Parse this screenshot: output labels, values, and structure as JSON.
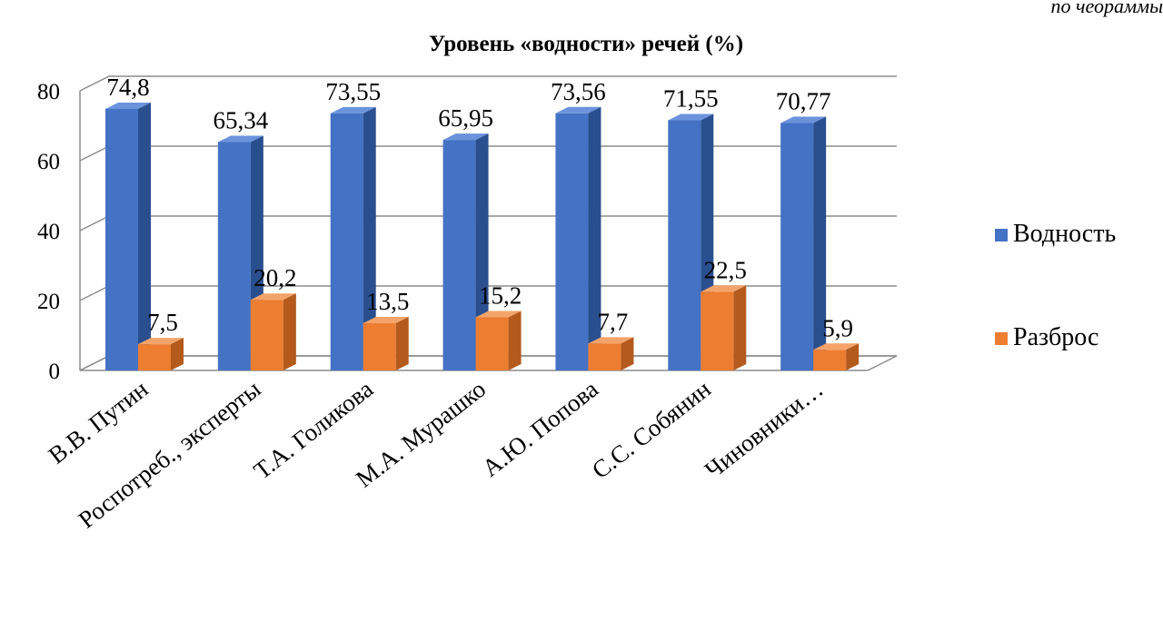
{
  "corner_fragment": "по чеораммы",
  "colors": {
    "vodnost_front": "#4472C4",
    "vodnost_top": "#6b93dc",
    "vodnost_side": "#2a4f8f",
    "razbros_front": "#ED7D31",
    "razbros_top": "#f4a46a",
    "razbros_side": "#b45a1d",
    "grid": "#8c8c8c"
  },
  "chart_data": {
    "type": "bar",
    "title": "Уровень «водности» речей (%)",
    "xlabel": "",
    "ylabel": "",
    "ylim": [
      0,
      80
    ],
    "yticks": [
      0,
      20,
      40,
      60,
      80
    ],
    "grid": true,
    "legend_position": "right",
    "categories": [
      "В.В. Путин",
      "Роспотреб., эксперты",
      "Т.А. Голикова",
      "М.А. Мурашко",
      "А.Ю. Попова",
      "С.С. Собянин",
      "Чиновники…"
    ],
    "series": [
      {
        "name": "Водность",
        "values": [
          74.8,
          65.34,
          73.55,
          65.95,
          73.56,
          71.55,
          70.77
        ],
        "labels": [
          "74,8",
          "65,34",
          "73,55",
          "65,95",
          "73,56",
          "71,55",
          "70,77"
        ]
      },
      {
        "name": "Разброс",
        "values": [
          7.5,
          20.2,
          13.5,
          15.2,
          7.7,
          22.5,
          5.9
        ],
        "labels": [
          "7,5",
          "20,2",
          "13,5",
          "15,2",
          "7,7",
          "22,5",
          "5,9"
        ]
      }
    ]
  }
}
